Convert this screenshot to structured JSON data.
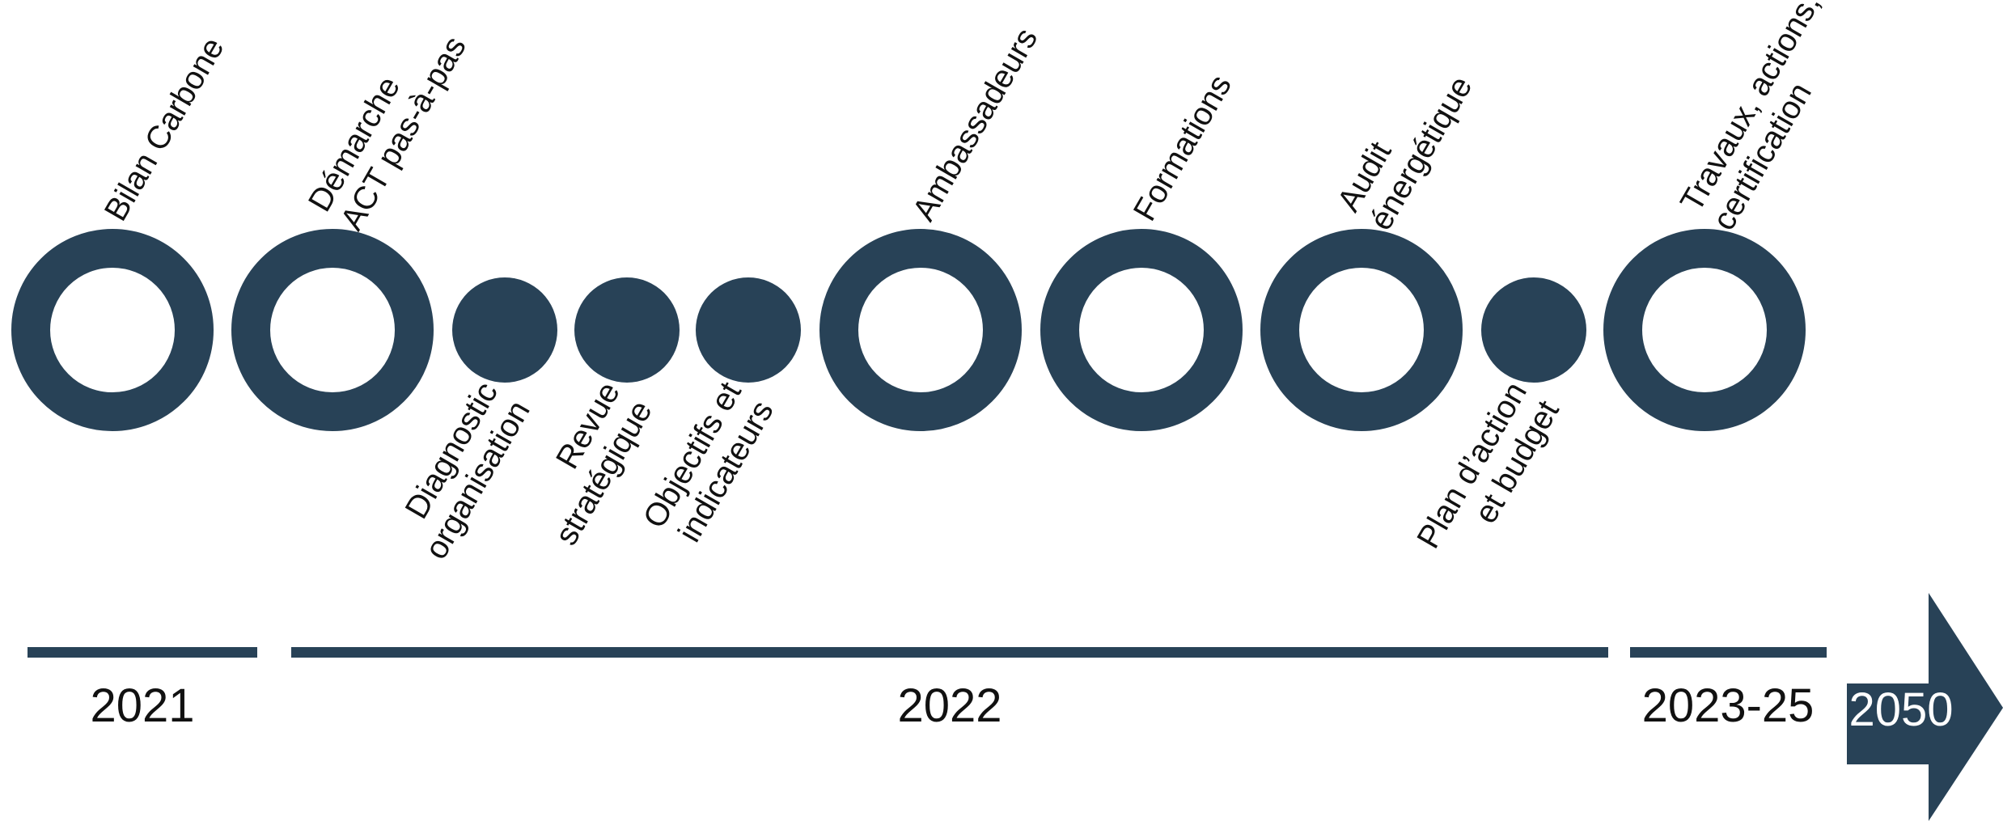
{
  "colors": {
    "primary": "#284257",
    "background": "#ffffff",
    "text": "#111111"
  },
  "milestones": [
    {
      "type": "ring",
      "lines": [
        "Bilan Carbone"
      ]
    },
    {
      "type": "ring",
      "lines": [
        "Démarche",
        "ACT pas-à-pas"
      ]
    },
    {
      "type": "dot",
      "lines": [
        "Diagnostic",
        "organisation"
      ]
    },
    {
      "type": "dot",
      "lines": [
        "Revue",
        "stratégique"
      ]
    },
    {
      "type": "dot",
      "lines": [
        "Objectifs et",
        "indicateurs"
      ]
    },
    {
      "type": "ring",
      "lines": [
        "Ambassadeurs"
      ]
    },
    {
      "type": "ring",
      "lines": [
        "Formations"
      ]
    },
    {
      "type": "ring",
      "lines": [
        "Audit",
        "énergétique"
      ]
    },
    {
      "type": "dot",
      "lines": [
        "Plan d’action",
        "et budget"
      ]
    },
    {
      "type": "ring",
      "lines": [
        "Travaux, actions,",
        "certification"
      ]
    }
  ],
  "periods": [
    "2021",
    "2022",
    "2023-25"
  ],
  "horizon": "2050"
}
